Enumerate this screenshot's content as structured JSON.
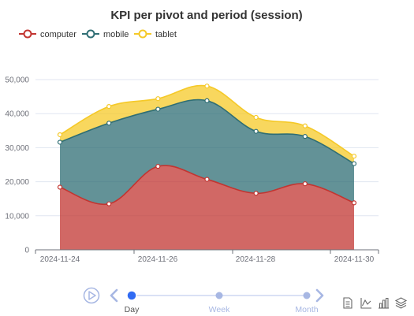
{
  "chart_data": {
    "type": "area",
    "stacked": true,
    "smooth": true,
    "title": "KPI per pivot and period (session)",
    "x": [
      "2024-11-24",
      "2024-11-25",
      "2024-11-26",
      "2024-11-27",
      "2024-11-28",
      "2024-11-29",
      "2024-11-30"
    ],
    "x_tick_labels": [
      "2024-11-24",
      "2024-11-26",
      "2024-11-28",
      "2024-11-30"
    ],
    "ylim": [
      0,
      50000
    ],
    "y_ticks": [
      0,
      10000,
      20000,
      30000,
      40000,
      50000
    ],
    "y_tick_labels": [
      "0",
      "10,000",
      "20,000",
      "30,000",
      "40,000",
      "50,000"
    ],
    "grid": true,
    "legend_position": "top-left",
    "series": [
      {
        "name": "computer",
        "color": "#c23531",
        "values": [
          18400,
          13500,
          24500,
          20700,
          16600,
          19400,
          13800
        ]
      },
      {
        "name": "mobile",
        "color": "#2f6e74",
        "values": [
          13200,
          23700,
          16800,
          23100,
          18200,
          13900,
          11500
        ]
      },
      {
        "name": "tablet",
        "color": "#f5c928",
        "values": [
          2200,
          4900,
          3100,
          4300,
          4100,
          3100,
          2200
        ]
      }
    ]
  },
  "timeline": {
    "options": [
      "Day",
      "Week",
      "Month"
    ],
    "selected_index": 0
  },
  "toolbox": {
    "icons": [
      "data-view-icon",
      "line-chart-icon",
      "bar-chart-icon",
      "stack-icon"
    ]
  }
}
